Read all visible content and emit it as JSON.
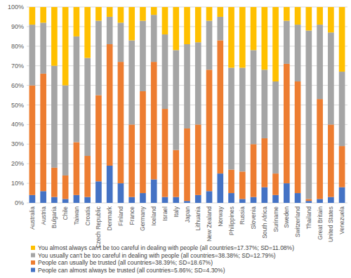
{
  "chart_data": {
    "type": "bar",
    "stacked": true,
    "grid": true,
    "legend": "bottom",
    "categories": [
      "Australia",
      "Austria",
      "Bulgaria",
      "Chile",
      "Taiwan",
      "Croatia",
      "Czech Republic",
      "Denmark",
      "Finland",
      "France",
      "Germany",
      "Iceland",
      "Israel",
      "Italy",
      "Japan",
      "Lithuania",
      "New Zealand",
      "Norway",
      "Philippines",
      "Russia",
      "Slovenia",
      "South Africa",
      "Suriname",
      "Sweden",
      "Switzerland",
      "Thailand",
      "Great Britain",
      "United States",
      "Venezuela"
    ],
    "series": [
      {
        "name": "People can almost always be trusted (all countries=5.86%; SD=4.30%)",
        "color": "#4472c4",
        "values": [
          4,
          6,
          3,
          2,
          4,
          3,
          11,
          19,
          10,
          3,
          5,
          12,
          3,
          3,
          1,
          4,
          6,
          15,
          5,
          2,
          3,
          8,
          4,
          10,
          5,
          1,
          2,
          3,
          8
        ]
      },
      {
        "name": "People can usually be trusted (all countries=38.39%; SD=18.67%)",
        "color": "#ed7d31",
        "values": [
          56,
          60,
          15,
          12,
          27,
          21,
          44,
          62,
          62,
          37,
          52,
          60,
          45,
          24,
          37,
          36,
          62,
          68,
          12,
          14,
          27,
          25,
          11,
          61,
          57,
          1,
          51,
          37,
          21
        ]
      },
      {
        "name": "You usually can't be too careful in dealing with people (all countries=38.38%; SD=12.79%)",
        "color": "#a5a5a5",
        "values": [
          31,
          26,
          52,
          46,
          54,
          50,
          38,
          14,
          20,
          43,
          36,
          24,
          38,
          51,
          43,
          42,
          25,
          12,
          52,
          53,
          48,
          35,
          47,
          22,
          29,
          86,
          38,
          47,
          38
        ]
      },
      {
        "name": "You almost always can't be too careful in dealing with people (all countries=17.37%; SD=11.08%)",
        "color": "#ffc000",
        "values": [
          9,
          8,
          30,
          40,
          15,
          26,
          7,
          5,
          8,
          17,
          7,
          4,
          14,
          22,
          19,
          18,
          7,
          5,
          31,
          31,
          22,
          32,
          38,
          7,
          9,
          12,
          9,
          13,
          33
        ]
      }
    ],
    "ylim": [
      0,
      100
    ],
    "yticks": [
      {
        "value": 0,
        "label": "0%"
      },
      {
        "value": 10,
        "label": "10%"
      },
      {
        "value": 20,
        "label": "20%"
      },
      {
        "value": 30,
        "label": "30%"
      },
      {
        "value": 40,
        "label": "40%"
      },
      {
        "value": 50,
        "label": "50%"
      },
      {
        "value": 60,
        "label": "60%"
      },
      {
        "value": 70,
        "label": "70%"
      },
      {
        "value": 80,
        "label": "80%"
      },
      {
        "value": 90,
        "label": "90%"
      },
      {
        "value": 100,
        "label": "100%"
      }
    ]
  }
}
